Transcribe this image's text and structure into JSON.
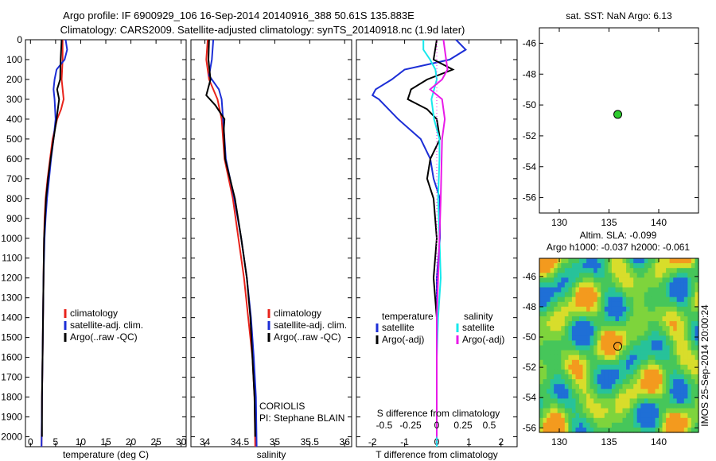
{
  "title": {
    "line1": "Argo profile: IF 6900929_106 16-Sep-2014 20140916_388 50.61S 135.883E",
    "line2": "Climatology: CARS2009. Satellite-adjusted climatology: synTS_20140918.nc (1.9d later)"
  },
  "colors": {
    "climatology": "#e8231b",
    "satellite": "#1c2ed6",
    "argo": "#000000",
    "sat_salinity": "#17e8ec",
    "argo_salinity": "#e81ae8",
    "float_marker": "#2ecc2e"
  },
  "chart_data": [
    {
      "type": "line",
      "id": "temperature",
      "xlabel": "temperature (deg C)",
      "ylim": [
        2050,
        0
      ],
      "xlim": [
        -1,
        31
      ],
      "xticks": [
        "0",
        "5",
        "10",
        "15",
        "20",
        "25",
        "30"
      ],
      "yticks": [
        "0",
        "100",
        "200",
        "300",
        "400",
        "500",
        "600",
        "700",
        "800",
        "900",
        "1000",
        "1100",
        "1200",
        "1300",
        "1400",
        "1500",
        "1600",
        "1700",
        "1800",
        "1900",
        "2000"
      ],
      "legend": [
        "climatology",
        "satellite-adj. clim.",
        "Argo(..raw -QC)"
      ],
      "series": [
        {
          "name": "climatology",
          "depth": [
            0,
            100,
            200,
            300,
            350,
            400,
            500,
            600,
            700,
            800,
            900,
            1000,
            1200,
            1400,
            1600,
            1800,
            2050
          ],
          "values": [
            6.4,
            6.4,
            6.2,
            6.6,
            6.1,
            5.3,
            4.4,
            3.9,
            3.4,
            3.0,
            2.8,
            2.7,
            2.6,
            2.5,
            2.4,
            2.3,
            2.2
          ]
        },
        {
          "name": "satellite-adj. clim.",
          "depth": [
            0,
            50,
            100,
            150,
            200,
            250,
            300,
            400,
            500,
            600,
            700,
            800,
            900,
            1000,
            1200,
            1400,
            1600,
            1800,
            2050
          ],
          "values": [
            7.0,
            7.3,
            6.8,
            5.2,
            4.8,
            4.6,
            4.8,
            5.0,
            4.6,
            4.1,
            3.7,
            3.3,
            3.0,
            2.8,
            2.6,
            2.5,
            2.4,
            2.3,
            2.2
          ]
        },
        {
          "name": "Argo(..raw -QC)",
          "depth": [
            0,
            100,
            200,
            250,
            300,
            400,
            500,
            600,
            700,
            800,
            900,
            1000,
            1200,
            1400,
            1600,
            1800,
            2000
          ],
          "values": [
            6.2,
            6.0,
            5.9,
            5.3,
            5.7,
            5.2,
            4.6,
            4.0,
            3.5,
            3.1,
            2.9,
            2.7,
            2.6,
            2.5,
            2.4,
            2.3,
            2.3
          ]
        }
      ]
    },
    {
      "type": "line",
      "id": "salinity",
      "xlabel": "salinity",
      "ylim": [
        2050,
        0
      ],
      "xlim": [
        33.8,
        36.1
      ],
      "xticks": [
        "34",
        "34.5",
        "35",
        "35.5",
        "36"
      ],
      "legend": [
        "climatology",
        "satellite-adj. clim.",
        "Argo(..raw -QC)"
      ],
      "annotations": [
        "CORIOLIS",
        "PI: Stephane BLAIN"
      ],
      "series": [
        {
          "name": "climatology",
          "depth": [
            0,
            100,
            200,
            300,
            400,
            500,
            600,
            800,
            1000,
            1200,
            1400,
            1600,
            1800,
            2050
          ],
          "values": [
            34.04,
            34.02,
            34.06,
            34.18,
            34.24,
            34.26,
            34.28,
            34.4,
            34.48,
            34.56,
            34.62,
            34.68,
            34.71,
            34.72
          ]
        },
        {
          "name": "satellite-adj. clim.",
          "depth": [
            0,
            100,
            180,
            250,
            300,
            400,
            500,
            600,
            800,
            1000,
            1200,
            1400,
            1600,
            1800,
            2050
          ],
          "values": [
            34.12,
            34.1,
            34.06,
            34.2,
            34.24,
            34.26,
            34.28,
            34.3,
            34.42,
            34.52,
            34.6,
            34.66,
            34.7,
            34.73,
            34.74
          ]
        },
        {
          "name": "Argo(..raw -QC)",
          "depth": [
            0,
            100,
            200,
            280,
            330,
            400,
            450,
            600,
            800,
            1000,
            1200,
            1400,
            1600,
            1800,
            2000
          ],
          "values": [
            34.06,
            34.05,
            34.08,
            34.02,
            34.15,
            34.28,
            34.27,
            34.29,
            34.43,
            34.52,
            34.6,
            34.65,
            34.68,
            34.71,
            34.72
          ]
        }
      ]
    },
    {
      "type": "line",
      "id": "difference",
      "xlabel": "T difference from climatology",
      "xlabel_top": "S difference from climatology",
      "ylim": [
        2050,
        0
      ],
      "xlim": [
        -2.5,
        2.5
      ],
      "xticks": [
        "-2",
        "-1",
        "0",
        "1",
        "2"
      ],
      "xticks_top": [
        "-0.5",
        "-0.25",
        "0",
        "0.25",
        "0.5"
      ],
      "legend_headers": [
        "temperature",
        "salinity"
      ],
      "legend": [
        "satellite",
        "Argo(-adj)",
        "satellite",
        "Argo(-adj)"
      ],
      "series": [
        {
          "name": "satellite",
          "quantity": "temperature",
          "depth": [
            0,
            50,
            100,
            150,
            200,
            250,
            280,
            300,
            400,
            500,
            600,
            700,
            800,
            900,
            1000,
            1200,
            1400,
            1600,
            1800,
            2050
          ],
          "values": [
            0.6,
            0.9,
            0.4,
            -1.0,
            -1.4,
            -1.9,
            -2.0,
            -1.8,
            -1.2,
            -0.5,
            -0.2,
            -0.1,
            0.1,
            0.1,
            0.1,
            0.0,
            0.0,
            0.0,
            0.0,
            0.0
          ]
        },
        {
          "name": "Argo(-adj)",
          "quantity": "temperature",
          "depth": [
            0,
            100,
            150,
            200,
            250,
            300,
            350,
            400,
            500,
            600,
            700,
            800,
            1000,
            1200,
            1400,
            1600,
            1800,
            2000
          ],
          "values": [
            0.0,
            -0.1,
            0.5,
            -0.3,
            -0.8,
            -0.9,
            -0.3,
            0.0,
            0.1,
            -0.2,
            -0.3,
            -0.1,
            0.0,
            -0.1,
            0.0,
            0.0,
            0.0,
            0.0
          ]
        },
        {
          "name": "satellite",
          "quantity": "salinity",
          "depth": [
            0,
            50,
            100,
            150,
            200,
            300,
            400,
            500,
            600,
            800,
            1000,
            1200,
            1400,
            1600,
            1800,
            2050
          ],
          "values": [
            -0.1,
            -0.1,
            -0.05,
            -0.01,
            0.0,
            -0.04,
            -0.02,
            0.02,
            0.02,
            0.01,
            0.02,
            0.03,
            0.01,
            0.0,
            0.0,
            0.0
          ]
        },
        {
          "name": "Argo(-adj)",
          "quantity": "salinity",
          "depth": [
            0,
            100,
            150,
            200,
            250,
            300,
            400,
            500,
            800,
            1000,
            1200,
            1400,
            1600,
            1800,
            2000
          ],
          "values": [
            0.05,
            0.07,
            0.08,
            0.04,
            -0.05,
            0.04,
            0.06,
            0.04,
            0.03,
            0.02,
            0.01,
            0.0,
            0.0,
            0.0,
            0.0
          ]
        }
      ]
    },
    {
      "type": "scatter",
      "id": "sst-map",
      "title": "sat. SST: NaN Argo: 6.13",
      "xlim": [
        128,
        144
      ],
      "ylim": [
        -57,
        -45
      ],
      "xticks": [
        "130",
        "135",
        "140"
      ],
      "yticks": [
        "-46",
        "-48",
        "-50",
        "-52",
        "-54",
        "-56"
      ],
      "points": [
        {
          "lon": 135.883,
          "lat": -50.61
        }
      ]
    },
    {
      "type": "heatmap",
      "id": "sla-map",
      "title": "Altim. SLA: -0.099",
      "subtitle": "Argo h1000: -0.037 h2000: -0.061",
      "side_label": "IMOS 25-Sep-2014 20:00:24",
      "xlim": [
        128,
        144
      ],
      "ylim": [
        -56.3,
        -44.8
      ],
      "xticks": [
        "130",
        "135",
        "140"
      ],
      "yticks": [
        "-46",
        "-48",
        "-50",
        "-52",
        "-54",
        "-56"
      ],
      "points": [
        {
          "lon": 135.883,
          "lat": -50.61
        }
      ]
    }
  ]
}
